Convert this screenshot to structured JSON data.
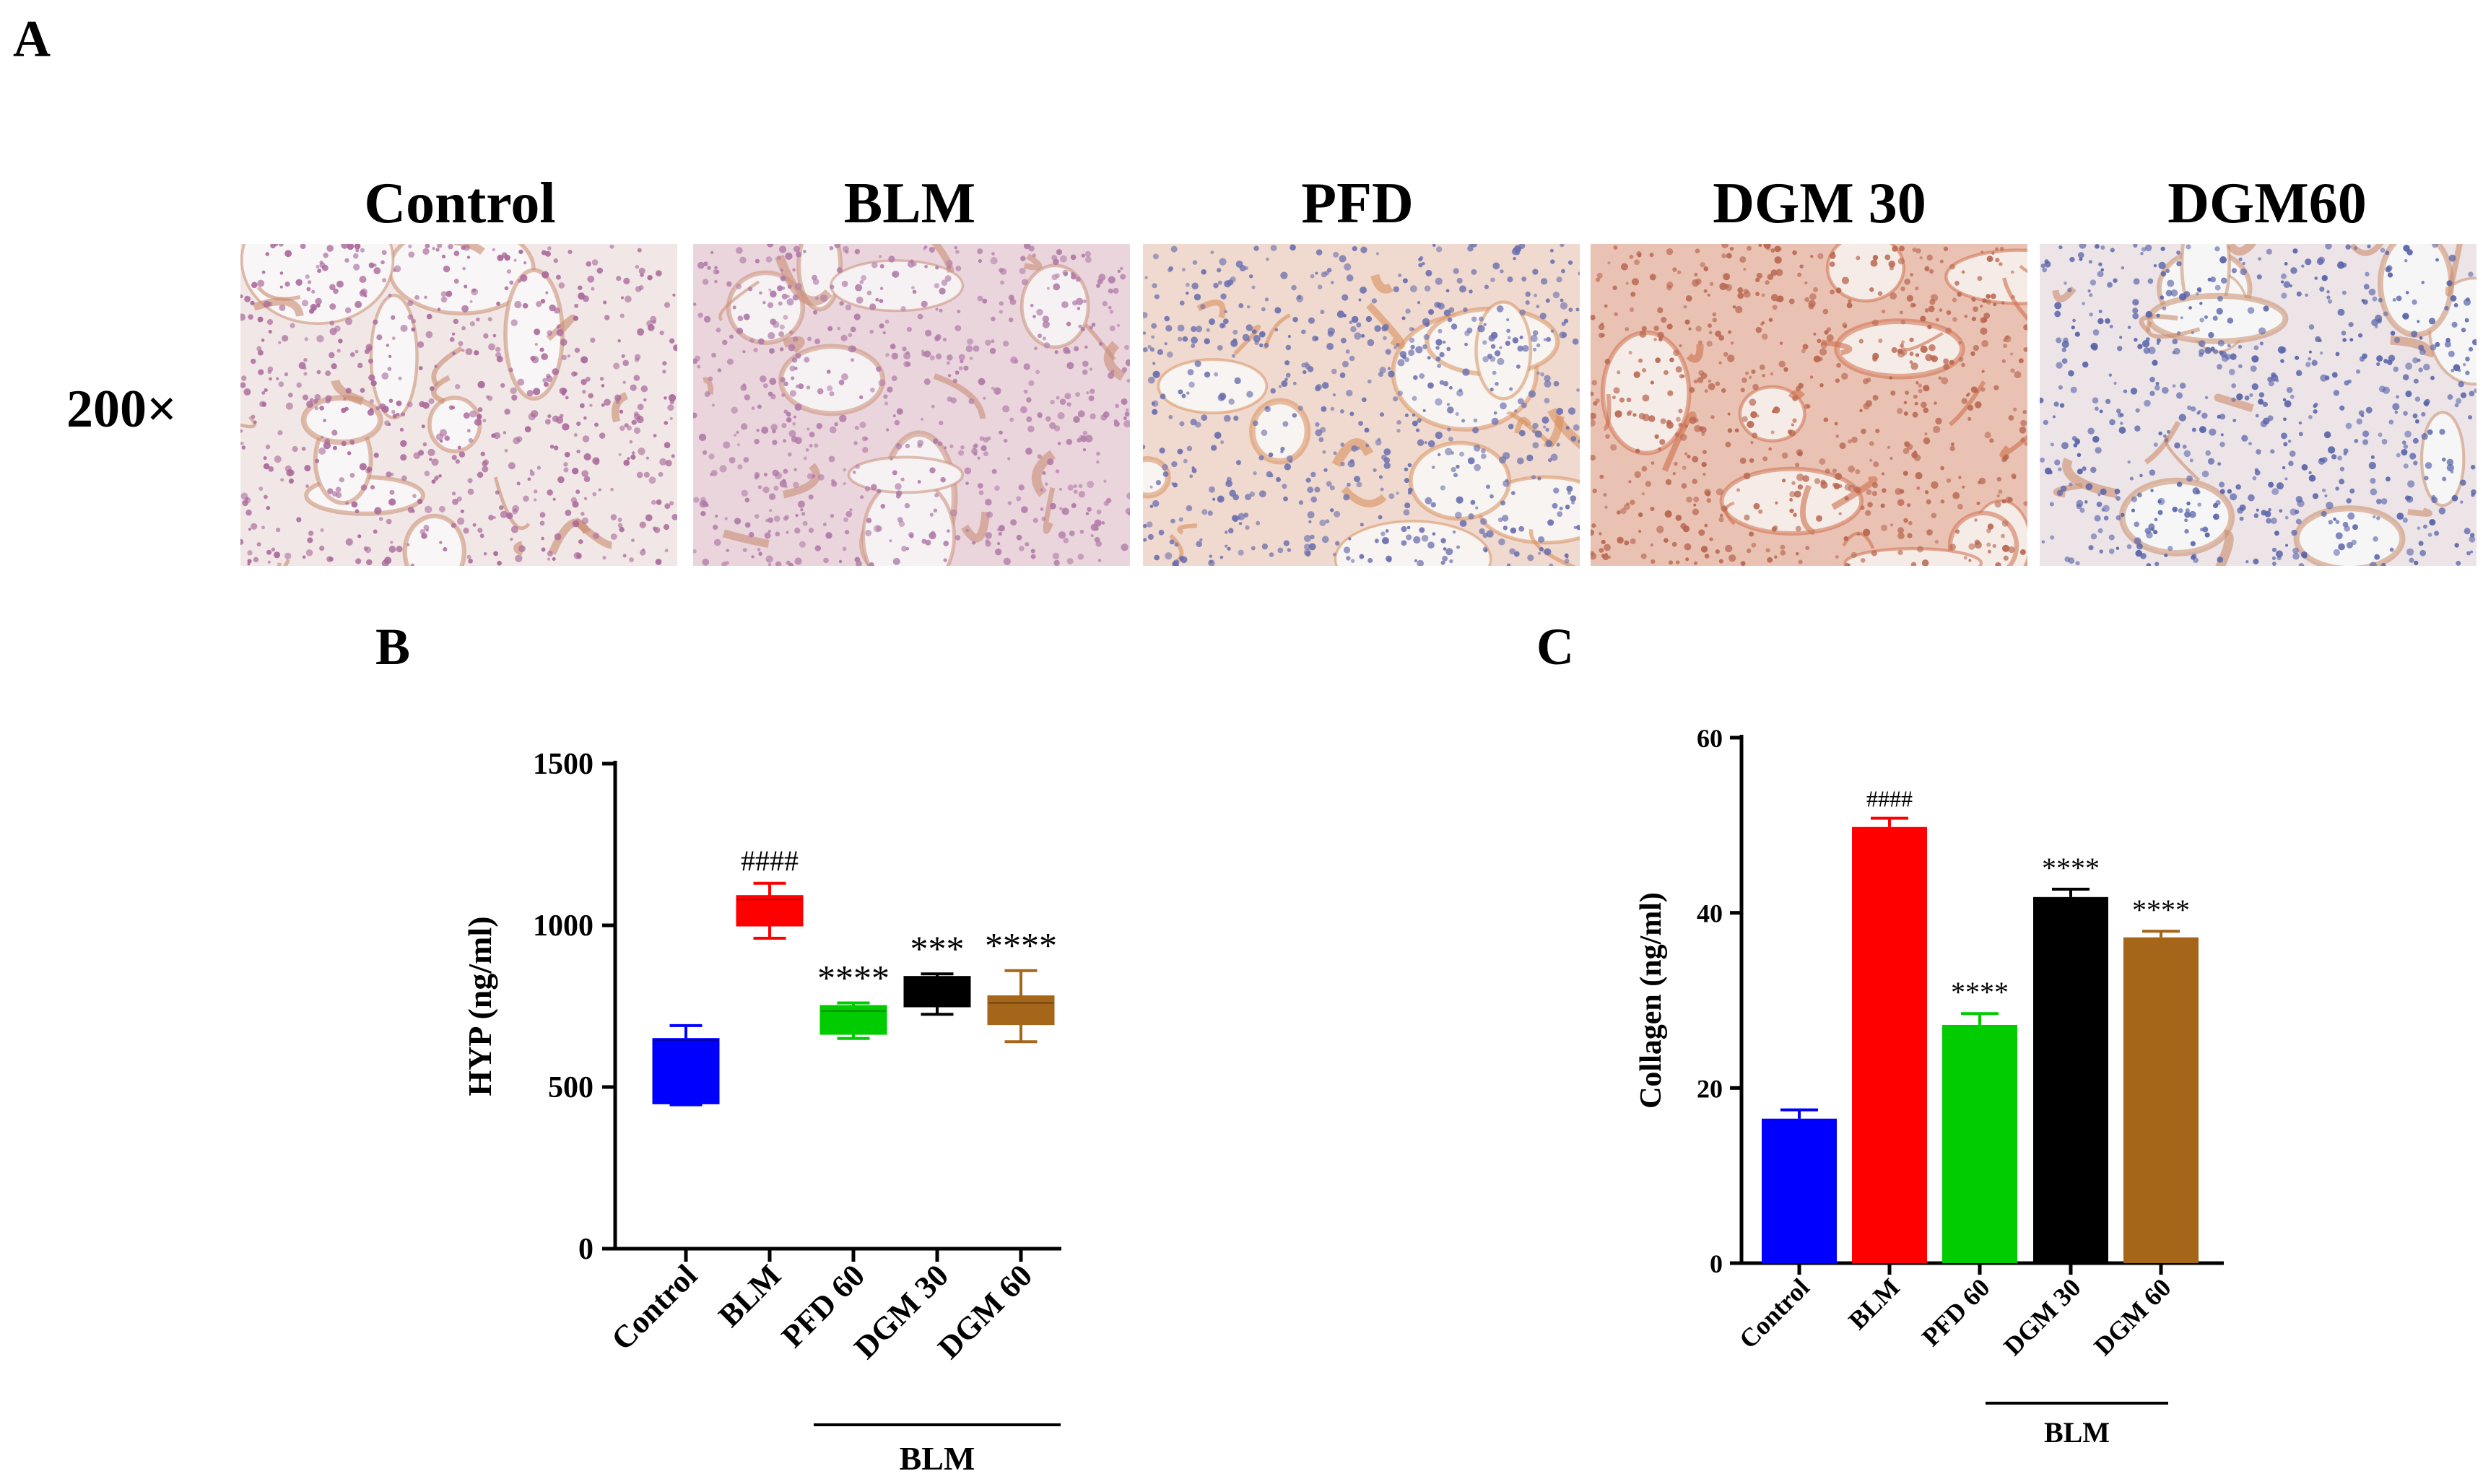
{
  "panel_a": {
    "letter": "A",
    "magnification": "200×",
    "columns": [
      "Control",
      "BLM",
      "PFD",
      "DGM 30",
      "DGM60"
    ],
    "tissue_colors": [
      {
        "bg": "#f1e7e6",
        "cell": "#a9689a",
        "stain": "#c98b6e",
        "space": "#f8f6f6"
      },
      {
        "bg": "#ead5dc",
        "cell": "#b07aa8",
        "stain": "#c98e78",
        "space": "#f6f2f3"
      },
      {
        "bg": "#f0d9cf",
        "cell": "#6a6fae",
        "stain": "#d98f5c",
        "space": "#f7f4f2"
      },
      {
        "bg": "#e9c2b4",
        "cell": "#b8664f",
        "stain": "#cf6f4b",
        "space": "#f5ece8"
      },
      {
        "bg": "#ede4e8",
        "cell": "#5763a8",
        "stain": "#c98d6a",
        "space": "#f7f6f7"
      }
    ]
  },
  "chart_data": [
    {
      "panel": "B",
      "type": "box",
      "title": "",
      "xlabel": "",
      "ylabel": "HYP (ng/ml)",
      "ylim": [
        0,
        1500
      ],
      "yticks": [
        0,
        500,
        1000,
        1500
      ],
      "categories": [
        "Control",
        "BLM",
        "PFD 60",
        "DGM 30",
        "DGM 60"
      ],
      "boxes": [
        {
          "min": 445,
          "q1": 450,
          "median": 645,
          "q3": 648,
          "max": 690,
          "color": "#0000ff",
          "annotation": ""
        },
        {
          "min": 960,
          "q1": 1000,
          "median": 1080,
          "q3": 1090,
          "max": 1130,
          "color": "#ff0000",
          "annotation": "####"
        },
        {
          "min": 650,
          "q1": 665,
          "median": 735,
          "q3": 750,
          "max": 760,
          "color": "#00cc00",
          "annotation": "****"
        },
        {
          "min": 725,
          "q1": 750,
          "median": 800,
          "q3": 840,
          "max": 850,
          "color": "#000000",
          "annotation": "***"
        },
        {
          "min": 640,
          "q1": 695,
          "median": 760,
          "q3": 780,
          "max": 860,
          "color": "#a5661a",
          "annotation": "****"
        }
      ],
      "group_bracket": {
        "label": "BLM",
        "from": "PFD 60",
        "to": "DGM 60"
      }
    },
    {
      "panel": "C",
      "type": "bar",
      "title": "",
      "xlabel": "",
      "ylabel": "Collagen (ng/ml)",
      "ylim": [
        0,
        60
      ],
      "yticks": [
        0,
        20,
        40,
        60
      ],
      "categories": [
        "Control",
        "BLM",
        "PFD 60",
        "DGM 30",
        "DGM 60"
      ],
      "values": [
        16.5,
        49.8,
        27.2,
        41.8,
        37.2
      ],
      "errors": [
        1.0,
        1.0,
        1.3,
        0.9,
        0.7
      ],
      "colors": [
        "#0000ff",
        "#ff0000",
        "#00cc00",
        "#000000",
        "#a5661a"
      ],
      "annotations": [
        "",
        "####",
        "****",
        "****",
        "****"
      ],
      "group_bracket": {
        "label": "BLM",
        "from": "PFD 60",
        "to": "DGM 60"
      }
    }
  ]
}
